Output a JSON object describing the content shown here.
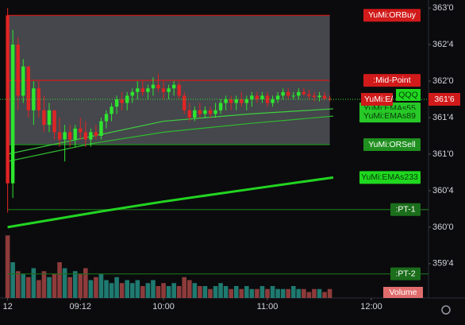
{
  "chart_data": {
    "type": "candlestick",
    "symbol": "QQQ",
    "x": [
      510,
      513,
      516,
      519,
      522,
      525,
      528,
      531,
      534,
      537,
      540,
      543,
      546,
      549,
      552,
      555,
      558,
      561,
      564,
      567,
      570,
      573,
      576,
      579,
      582,
      585,
      588,
      591,
      594,
      597,
      600,
      603,
      606,
      609,
      612,
      615,
      618,
      621,
      624,
      627,
      630,
      633,
      636,
      639,
      642,
      645,
      648,
      651,
      654,
      657,
      660,
      663,
      666,
      669,
      672,
      675,
      678,
      681,
      684,
      687,
      690,
      693,
      696
    ],
    "open": [
      362.9,
      360.6,
      362.5,
      361.8,
      362.2,
      361.6,
      361.9,
      361.6,
      361.4,
      361.6,
      361.3,
      361.2,
      361.3,
      361.2,
      361.35,
      361.3,
      361.2,
      361.3,
      361.25,
      361.45,
      361.55,
      361.65,
      361.75,
      361.7,
      361.8,
      361.85,
      361.9,
      361.85,
      361.9,
      361.95,
      361.9,
      361.85,
      361.9,
      361.95,
      361.8,
      361.6,
      361.5,
      361.6,
      361.55,
      361.6,
      361.55,
      361.6,
      361.7,
      361.75,
      361.7,
      361.75,
      361.7,
      361.75,
      361.8,
      361.75,
      361.8,
      361.7,
      361.75,
      361.8,
      361.85,
      361.8,
      361.8,
      361.85,
      361.82,
      361.8,
      361.78,
      361.8,
      361.76
    ],
    "high": [
      363.0,
      362.7,
      362.6,
      362.3,
      362.2,
      362.0,
      362.0,
      361.8,
      361.7,
      361.6,
      361.5,
      361.4,
      361.4,
      361.4,
      361.5,
      361.45,
      361.35,
      361.4,
      361.5,
      361.6,
      361.7,
      361.8,
      361.85,
      361.85,
      361.9,
      362.0,
      362.0,
      361.95,
      362.05,
      362.1,
      362.0,
      361.95,
      362.0,
      362.0,
      361.85,
      361.7,
      361.65,
      361.7,
      361.65,
      361.65,
      361.7,
      361.75,
      361.8,
      361.8,
      361.8,
      361.85,
      361.8,
      361.85,
      361.85,
      361.85,
      361.85,
      361.8,
      361.85,
      361.9,
      361.9,
      361.85,
      361.9,
      361.9,
      361.88,
      361.85,
      361.85,
      361.85,
      361.8
    ],
    "low": [
      360.2,
      360.4,
      361.6,
      361.7,
      361.5,
      361.4,
      361.5,
      361.3,
      361.3,
      361.2,
      361.1,
      360.9,
      361.1,
      361.1,
      361.2,
      361.1,
      361.1,
      361.2,
      361.2,
      361.35,
      361.45,
      361.55,
      361.6,
      361.6,
      361.7,
      361.75,
      361.8,
      361.75,
      361.8,
      361.85,
      361.75,
      361.75,
      361.8,
      361.75,
      361.55,
      361.45,
      361.45,
      361.5,
      361.5,
      361.5,
      361.5,
      361.55,
      361.6,
      361.6,
      361.6,
      361.65,
      361.6,
      361.65,
      361.7,
      361.7,
      361.65,
      361.65,
      361.7,
      361.75,
      361.75,
      361.75,
      361.75,
      361.8,
      361.75,
      361.72,
      361.72,
      361.74,
      361.72
    ],
    "close": [
      360.6,
      362.5,
      361.8,
      362.2,
      361.6,
      361.9,
      361.6,
      361.4,
      361.6,
      361.3,
      361.2,
      361.3,
      361.2,
      361.35,
      361.3,
      361.2,
      361.3,
      361.25,
      361.45,
      361.55,
      361.65,
      361.75,
      361.7,
      361.8,
      361.85,
      361.9,
      361.85,
      361.9,
      361.95,
      361.9,
      361.85,
      361.9,
      361.95,
      361.8,
      361.6,
      361.5,
      361.6,
      361.55,
      361.6,
      361.55,
      361.6,
      361.7,
      361.75,
      361.7,
      361.75,
      361.7,
      361.75,
      361.8,
      361.75,
      361.8,
      361.7,
      361.75,
      361.8,
      361.85,
      361.8,
      361.8,
      361.85,
      361.82,
      361.8,
      361.78,
      361.8,
      361.76,
      361.75
    ],
    "volume": {
      "name": "Volume",
      "axis": "y2",
      "up_color": "#1f7a70",
      "down_color": "#8e3b3b",
      "values": [
        21,
        12,
        9,
        8,
        7,
        10,
        6,
        9,
        7,
        8,
        12,
        10,
        7,
        9,
        8,
        10,
        6,
        7,
        8,
        6,
        5,
        7,
        5,
        6,
        5,
        6,
        4,
        5,
        6,
        4,
        5,
        4,
        5,
        4,
        7,
        6,
        5,
        4,
        4,
        3,
        4,
        5,
        4,
        3,
        4,
        3,
        4,
        3,
        3,
        4,
        3,
        4,
        3,
        3,
        3,
        4,
        3,
        3,
        2,
        3,
        3,
        2,
        3
      ]
    },
    "up_color": "#2ee62e",
    "down_color": "#e02424",
    "levels": [
      {
        "name": "YuMi:ORBuy",
        "value": 362.9,
        "color": "#d11a1a"
      },
      {
        "name": ":Mid-Point",
        "value": 362.01,
        "color": "#d11a1a"
      },
      {
        "name": "YuMi:ORSell",
        "value": 361.13,
        "color": "#1f8f1f"
      },
      {
        "name": ":PT-1",
        "value": 360.24,
        "color": "#1b6e1b"
      },
      {
        "name": ":PT-2",
        "value": 359.36,
        "color": "#1b6e1b"
      }
    ],
    "emas": [
      {
        "name": "YuMi:EMAs55",
        "color": "#3fcf3f",
        "x": [
          510,
          560,
          600,
          650,
          698
        ],
        "values": [
          361.0,
          361.25,
          361.45,
          361.55,
          361.62
        ]
      },
      {
        "name": "YuMi:EMAs89",
        "color": "#2fb82f",
        "x": [
          510,
          560,
          600,
          650,
          698
        ],
        "values": [
          360.9,
          361.15,
          361.3,
          361.42,
          361.52
        ]
      },
      {
        "name": "YuMi:EMAs233",
        "color": "#22d422",
        "x": [
          510,
          560,
          600,
          650,
          698
        ],
        "values": [
          360.0,
          360.2,
          360.35,
          360.52,
          360.68
        ]
      }
    ],
    "annotation": "YuMi:E/",
    "last_price": {
      "value": 361.75,
      "label": "361'6"
    },
    "xlim": [
      505.6,
      753
    ],
    "ylim": [
      359.03,
      363.11
    ],
    "y2lim": [
      0,
      100
    ],
    "xticks": [
      {
        "value": 510,
        "label": "12"
      },
      {
        "value": 552,
        "label": "09:12"
      },
      {
        "value": 600,
        "label": "10:00"
      },
      {
        "value": 660,
        "label": "11:00"
      },
      {
        "value": 720,
        "label": "12:00"
      }
    ],
    "yticks": [
      {
        "value": 363,
        "label": "363'0"
      },
      {
        "value": 362.5,
        "label": "362'4"
      },
      {
        "value": 362,
        "label": "362'0"
      },
      {
        "value": 361.5,
        "label": "361'4"
      },
      {
        "value": 361,
        "label": "361'0"
      },
      {
        "value": 360.5,
        "label": "360'4"
      },
      {
        "value": 360,
        "label": "360'0"
      },
      {
        "value": 359.5,
        "label": "359'4"
      }
    ]
  }
}
